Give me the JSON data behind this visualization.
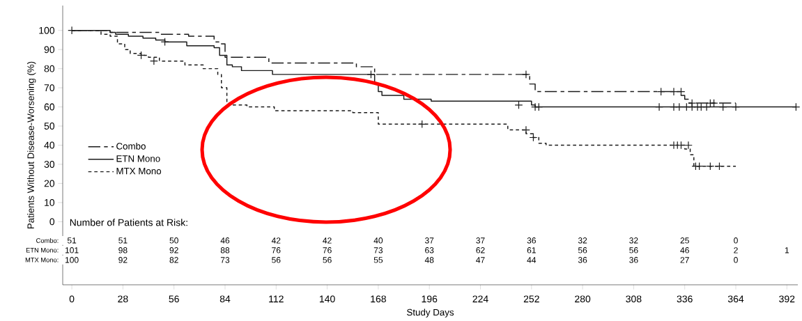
{
  "chart_data": [
    {
      "type": "step",
      "ylabel": "Patients Without Disease-Worsening (%)",
      "xlabel": "Study Days",
      "xlim": [
        -5,
        398
      ],
      "xticks": [
        0,
        28,
        56,
        84,
        112,
        140,
        168,
        196,
        224,
        252,
        280,
        308,
        336,
        364,
        392
      ],
      "ylim": [
        -33,
        113
      ],
      "yticks": [
        0,
        10,
        20,
        30,
        40,
        50,
        60,
        70,
        80,
        90,
        100
      ],
      "legend": "left",
      "series": [
        {
          "name": "Combo",
          "color": "#1a1a1a",
          "line_style": "dashed",
          "x": [
            0,
            21,
            48,
            64,
            78,
            81,
            84,
            108,
            156,
            166,
            251,
            254,
            334,
            336,
            338,
            364
          ],
          "values": [
            100,
            99,
            98,
            97,
            94,
            93,
            86,
            83,
            81,
            77,
            72,
            68,
            66,
            64,
            62,
            62
          ]
        },
        {
          "name": "ETN Mono",
          "color": "#1a1a1a",
          "line_style": "solid",
          "x": [
            0,
            21,
            24,
            31,
            39,
            46,
            51,
            63,
            78,
            81,
            85,
            88,
            93,
            110,
            166,
            168,
            170,
            182,
            197,
            252,
            254,
            397
          ],
          "values": [
            100,
            99,
            98,
            97,
            96,
            95,
            94,
            92,
            91,
            87,
            82,
            81,
            79,
            77,
            72,
            68,
            66,
            64,
            63,
            61,
            60,
            60
          ]
        },
        {
          "name": "MTX Mono",
          "color": "#1a1a1a",
          "line_style": "dotted",
          "x": [
            0,
            16,
            21,
            25,
            29,
            32,
            38,
            42,
            48,
            62,
            72,
            80,
            82,
            85,
            87,
            96,
            111,
            154,
            168,
            239,
            249,
            253,
            256,
            260,
            336,
            339,
            341,
            364
          ],
          "values": [
            100,
            98,
            97,
            93,
            90,
            88,
            87,
            86,
            84,
            82,
            80,
            77,
            70,
            62,
            61,
            60,
            58,
            57,
            51,
            48,
            46,
            44,
            41,
            40,
            38,
            35,
            29,
            29
          ]
        },
        {
          "type": "scatter",
          "marker": "cross",
          "color": "#1a1a1a",
          "x": [
            249,
            323,
            330,
            334,
            340,
            350,
            352
          ],
          "values": [
            77,
            68,
            68,
            68,
            62,
            62,
            62
          ]
        },
        {
          "type": "scatter",
          "marker": "cross",
          "color": "#1a1a1a",
          "x": [
            0,
            51,
            164,
            245,
            254,
            256,
            322,
            330,
            333,
            337,
            340,
            343,
            345,
            348,
            357,
            364,
            397
          ],
          "values": [
            100,
            94,
            77,
            61,
            60,
            60,
            60,
            60,
            60,
            60,
            60,
            60,
            60,
            60,
            60,
            60,
            60
          ]
        },
        {
          "type": "scatter",
          "marker": "cross",
          "color": "#1a1a1a",
          "x": [
            38,
            45,
            192,
            249,
            253,
            330,
            332,
            334,
            338,
            342,
            344,
            350,
            355
          ],
          "values": [
            87,
            84,
            51,
            48,
            44,
            40,
            40,
            40,
            40,
            29,
            29,
            29,
            29
          ]
        }
      ]
    },
    {
      "type": "heatmap",
      "title": "Number of Patients at Risk:",
      "data_labels": true,
      "categories": [
        null,
        null,
        null,
        null,
        null,
        null,
        null,
        null,
        null,
        null,
        null,
        null,
        null,
        null,
        null
      ],
      "y_categories": [
        "Combo:",
        "ETN Mono:",
        "MTX Mono:"
      ],
      "cells": [
        [
          51,
          51,
          50,
          46,
          42,
          42,
          40,
          37,
          37,
          36,
          32,
          32,
          25,
          0,
          null
        ],
        [
          101,
          98,
          92,
          88,
          76,
          76,
          73,
          63,
          62,
          61,
          56,
          56,
          46,
          2,
          1
        ],
        [
          100,
          92,
          82,
          73,
          56,
          56,
          55,
          48,
          47,
          44,
          36,
          36,
          27,
          0,
          null
        ]
      ]
    }
  ]
}
